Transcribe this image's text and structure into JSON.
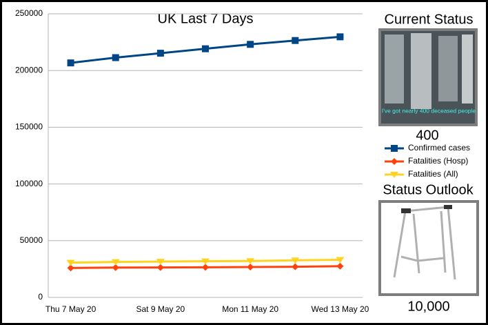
{
  "chart_data": {
    "type": "line",
    "title": "UK Last 7 Days",
    "categories": [
      "Thu 7 May 20",
      null,
      "Sat 9 May 20",
      null,
      "Mon 11 May 20",
      null,
      "Wed 13 May 20"
    ],
    "series": [
      {
        "name": "Confirmed cases",
        "color": "#004586",
        "marker": "square",
        "values": [
          206715,
          211364,
          215260,
          219183,
          223060,
          226463,
          229705
        ]
      },
      {
        "name": "Fatalities (Hosp)",
        "color": "#ff420e",
        "marker": "diamond",
        "values": [
          25900,
          26300,
          26400,
          26500,
          26800,
          27000,
          27500
        ]
      },
      {
        "name": "Fatalities (All)",
        "color": "#ffd320",
        "marker": "triangle-down",
        "values": [
          30615,
          31241,
          31587,
          31855,
          32065,
          32692,
          33186
        ]
      }
    ],
    "ylim": [
      0,
      250000
    ],
    "yticks": [
      0,
      50000,
      100000,
      150000,
      200000,
      250000
    ],
    "grid": true
  },
  "sidebar": {
    "status_title": "Current Status",
    "status_caption": "I've got nearly 400 deceased people",
    "status_value": "400",
    "outlook_title": "Status Outlook",
    "outlook_value": "10,000"
  }
}
